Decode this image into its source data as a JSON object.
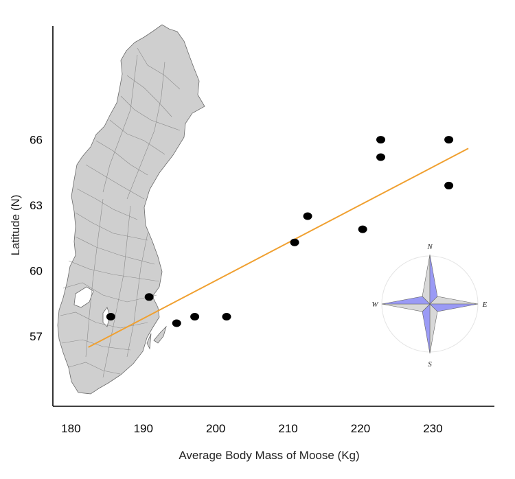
{
  "chart_data": {
    "type": "scatter",
    "title": "",
    "xlabel": "Average Body Mass of Moose (Kg)",
    "ylabel": "Latitude (N)",
    "xlim": [
      177.5,
      238.5
    ],
    "ylim": [
      53.8,
      71.2
    ],
    "xticks": [
      180,
      190,
      200,
      210,
      220,
      230
    ],
    "xtick_labels": [
      "180",
      "190",
      "200",
      "210",
      "220",
      "230"
    ],
    "yticks": [
      57,
      60,
      63,
      66
    ],
    "ytick_labels": [
      "57",
      "60",
      "63",
      "66"
    ],
    "grid": false,
    "points": [
      {
        "x": 185.5,
        "y": 57.9
      },
      {
        "x": 190.8,
        "y": 58.8
      },
      {
        "x": 194.6,
        "y": 57.6
      },
      {
        "x": 197.1,
        "y": 57.9
      },
      {
        "x": 201.5,
        "y": 57.9
      },
      {
        "x": 210.9,
        "y": 61.3
      },
      {
        "x": 212.7,
        "y": 62.5
      },
      {
        "x": 220.3,
        "y": 61.9
      },
      {
        "x": 222.8,
        "y": 65.2
      },
      {
        "x": 222.8,
        "y": 66.0
      },
      {
        "x": 232.2,
        "y": 63.9
      },
      {
        "x": 232.2,
        "y": 66.0
      }
    ],
    "trendline": {
      "x": [
        182.4,
        234.9
      ],
      "y": [
        56.5,
        65.6
      ],
      "color": "#f0a030"
    },
    "point_color": "#000000",
    "map_fill": "#cfcfcf",
    "compass": {
      "n": "N",
      "s": "S",
      "e": "E",
      "w": "W",
      "fill": "#9a9af5"
    }
  }
}
